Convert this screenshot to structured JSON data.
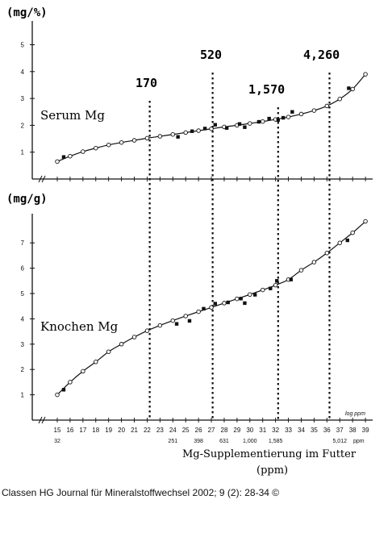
{
  "caption": "Classen HG Journal für Mineralstoffwechsel 2002; 9 (2): 28-34 ©",
  "colors": {
    "ink": "#111111",
    "background": "#ffffff"
  },
  "chart_data": [
    {
      "type": "line",
      "panel": "top",
      "unit_label": "(mg/%)",
      "series_label": "Serum Mg",
      "ylim": [
        0,
        5
      ],
      "yticks": [
        1,
        2,
        3,
        4,
        5
      ],
      "x": [
        15,
        16,
        17,
        18,
        19,
        20,
        21,
        22,
        23,
        24,
        25,
        26,
        27,
        28,
        29,
        30,
        31,
        32,
        33,
        34,
        35,
        36,
        37,
        38,
        39
      ],
      "series": [
        {
          "marker": "open-circle-curve",
          "values": [
            0.65,
            0.85,
            1.02,
            1.15,
            1.27,
            1.36,
            1.44,
            1.52,
            1.59,
            1.66,
            1.73,
            1.8,
            1.87,
            1.94,
            2.0,
            2.07,
            2.14,
            2.22,
            2.31,
            2.42,
            2.55,
            2.72,
            2.98,
            3.35,
            3.9
          ]
        },
        {
          "marker": "filled-square",
          "x": [
            15.5,
            24.4,
            25.5,
            26.5,
            27.3,
            28.2,
            29.2,
            29.6,
            30.7,
            31.5,
            32.2,
            32.6,
            33.3,
            37.7
          ],
          "values": [
            0.82,
            1.57,
            1.78,
            1.88,
            2.02,
            1.9,
            2.05,
            1.93,
            2.13,
            2.25,
            2.2,
            2.28,
            2.5,
            3.38
          ]
        }
      ],
      "vlines": [
        {
          "x": 22.2,
          "label": "170"
        },
        {
          "x": 27.1,
          "label": "520"
        },
        {
          "x": 32.2,
          "label": "1,570"
        },
        {
          "x": 36.2,
          "label": "4,260"
        }
      ]
    },
    {
      "type": "line",
      "panel": "bottom",
      "unit_label": "(mg/g)",
      "series_label": "Knochen Mg",
      "ylim": [
        0,
        8
      ],
      "yticks": [
        1,
        2,
        3,
        4,
        5,
        6,
        7
      ],
      "x": [
        15,
        16,
        17,
        18,
        19,
        20,
        21,
        22,
        23,
        24,
        25,
        26,
        27,
        28,
        29,
        30,
        31,
        32,
        33,
        34,
        35,
        36,
        37,
        38,
        39
      ],
      "series": [
        {
          "marker": "open-circle-curve",
          "values": [
            1.0,
            1.5,
            1.93,
            2.3,
            2.7,
            3.0,
            3.28,
            3.53,
            3.74,
            3.93,
            4.11,
            4.28,
            4.45,
            4.62,
            4.79,
            4.96,
            5.14,
            5.33,
            5.55,
            5.92,
            6.24,
            6.6,
            7.0,
            7.4,
            7.85
          ]
        },
        {
          "marker": "filled-square",
          "x": [
            15.5,
            24.3,
            25.3,
            26.4,
            27.3,
            28.3,
            29.3,
            29.6,
            30.4,
            31.6,
            32.1,
            33.2,
            37.6
          ],
          "values": [
            1.2,
            3.8,
            3.92,
            4.4,
            4.6,
            4.65,
            4.8,
            4.62,
            4.95,
            5.2,
            5.5,
            5.55,
            7.1
          ]
        }
      ],
      "xaxis": {
        "tick_labels": [
          "15",
          "16",
          "17",
          "18",
          "19",
          "20",
          "21",
          "22",
          "23",
          "24",
          "25",
          "26",
          "27",
          "28",
          "29",
          "30",
          "31",
          "32",
          "33",
          "34",
          "35",
          "36",
          "37",
          "38",
          "39"
        ],
        "unit": "log ppm",
        "ppm_labels": [
          {
            "x": 15,
            "text": "32"
          },
          {
            "x": 24,
            "text": "251"
          },
          {
            "x": 26,
            "text": "398"
          },
          {
            "x": 28,
            "text": "631"
          },
          {
            "x": 30,
            "text": "1,000"
          },
          {
            "x": 32,
            "text": "1,585"
          },
          {
            "x": 37,
            "text": "5,012"
          }
        ],
        "ppm_unit": "ppm",
        "title": "Mg-Supplementierung im Futter",
        "title_unit": "(ppm)"
      }
    }
  ]
}
